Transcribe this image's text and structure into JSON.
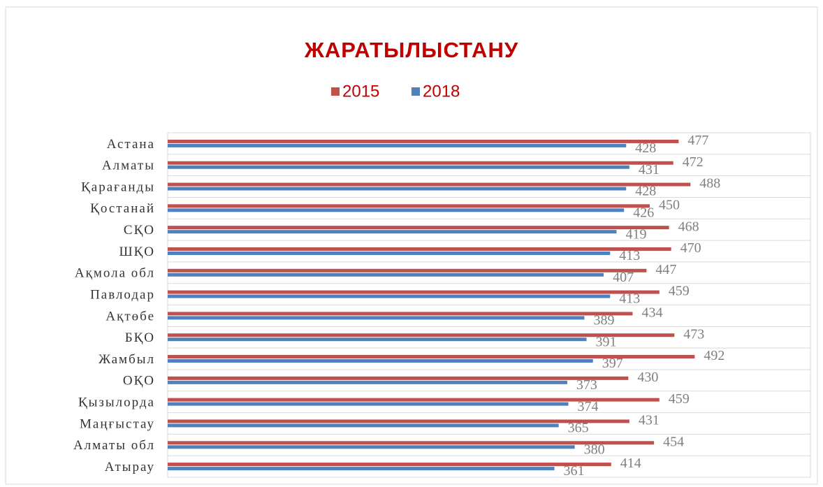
{
  "chart_data": {
    "type": "hbar",
    "title": "ЖАРАТЫЛЫСТАНУ",
    "categories": [
      "Астана",
      "Алматы",
      "Қарағанды",
      "Қостанай",
      "СҚО",
      "ШҚО",
      "Ақмола обл",
      "Павлодар",
      "Ақтөбе",
      "БҚО",
      "Жамбыл",
      "ОҚО",
      "Қызылорда",
      "Маңғыстау",
      "Алматы обл",
      "Атырау"
    ],
    "series": [
      {
        "name": "2015",
        "color": "#c0504d",
        "values": [
          477,
          472,
          488,
          450,
          468,
          470,
          447,
          459,
          434,
          473,
          492,
          430,
          459,
          431,
          454,
          414
        ]
      },
      {
        "name": "2018",
        "color": "#4f81bd",
        "values": [
          428,
          431,
          428,
          426,
          419,
          413,
          407,
          413,
          389,
          391,
          397,
          373,
          374,
          365,
          380,
          361
        ]
      }
    ],
    "xlim": [
      0,
      600
    ],
    "grid": true,
    "legend": "top"
  }
}
